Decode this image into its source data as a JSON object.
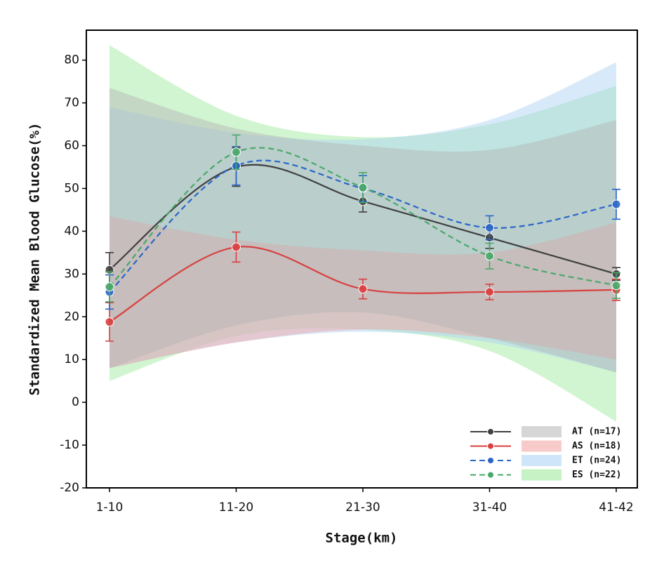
{
  "chart_data": {
    "type": "line",
    "x_label": "Stage(km)",
    "y_label": "Standardized Mean Blood Glucose(%)",
    "categories": [
      "1-10",
      "11-20",
      "21-30",
      "31-40",
      "41-42"
    ],
    "ylim": [
      -20,
      87
    ],
    "yticks": [
      -20,
      -10,
      0,
      10,
      20,
      30,
      40,
      50,
      60,
      70,
      80
    ],
    "legend": "lower right",
    "series": [
      {
        "name": "AT (n=17)",
        "color": "#404040",
        "band_color": "#b4b4b4",
        "linestyle": "solid",
        "values": [
          31,
          55,
          47,
          38.5,
          30
        ],
        "errors": [
          4,
          4.5,
          2.5,
          2.5,
          1.5
        ],
        "band_upper": [
          73.5,
          64,
          60,
          59,
          66
        ],
        "band_lower": [
          8,
          18,
          21,
          15,
          7
        ]
      },
      {
        "name": "AS (n=18)",
        "color": "#d94040",
        "band_color": "#f2a0a0",
        "linestyle": "solid",
        "values": [
          18.8,
          36.3,
          26.5,
          25.8,
          26.3
        ],
        "errors": [
          4.5,
          3.5,
          2.3,
          1.8,
          2.5
        ],
        "band_upper": [
          43.5,
          38,
          35.5,
          35,
          42
        ],
        "band_lower": [
          8,
          14,
          17,
          15,
          10
        ]
      },
      {
        "name": "ET (n=24)",
        "color": "#2a66c8",
        "band_color": "#a8d0f5",
        "linestyle": "dashed",
        "values": [
          25.8,
          55.3,
          50,
          40.8,
          46.3
        ],
        "errors": [
          4,
          4.5,
          3,
          2.8,
          3.5
        ],
        "band_upper": [
          69,
          63,
          61.5,
          66,
          79.5
        ],
        "band_lower": [
          8,
          14,
          16.5,
          14,
          7
        ]
      },
      {
        "name": "ES (n=22)",
        "color": "#4aa86a",
        "band_color": "#98e898",
        "linestyle": "dashed",
        "values": [
          27,
          58.5,
          50.2,
          34.2,
          27.3
        ],
        "errors": [
          3.5,
          4,
          3.5,
          3,
          3
        ],
        "band_upper": [
          83.5,
          67,
          62,
          65,
          74
        ],
        "band_lower": [
          5,
          15.5,
          17,
          12,
          -4.5
        ]
      }
    ]
  }
}
